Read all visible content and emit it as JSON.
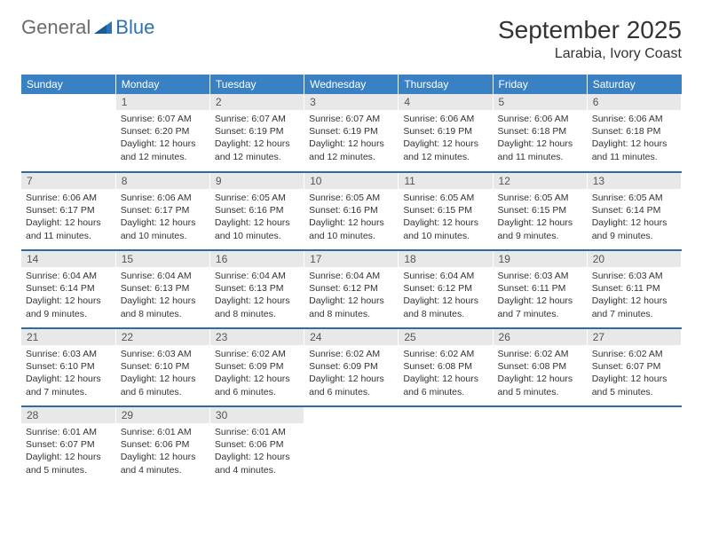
{
  "logo": {
    "general": "General",
    "blue": "Blue"
  },
  "title": "September 2025",
  "location": "Larabia, Ivory Coast",
  "header_color": "#3a81c4",
  "rule_color": "#2e6da4",
  "daynum_bg": "#e8e8e8",
  "fontsize_title": 28,
  "fontsize_location": 16,
  "fontsize_dayhead": 12,
  "fontsize_body": 10.5,
  "weekdays": [
    "Sunday",
    "Monday",
    "Tuesday",
    "Wednesday",
    "Thursday",
    "Friday",
    "Saturday"
  ],
  "weeks": [
    [
      null,
      {
        "n": "1",
        "sr": "6:07 AM",
        "ss": "6:20 PM",
        "dl": "12 hours and 12 minutes."
      },
      {
        "n": "2",
        "sr": "6:07 AM",
        "ss": "6:19 PM",
        "dl": "12 hours and 12 minutes."
      },
      {
        "n": "3",
        "sr": "6:07 AM",
        "ss": "6:19 PM",
        "dl": "12 hours and 12 minutes."
      },
      {
        "n": "4",
        "sr": "6:06 AM",
        "ss": "6:19 PM",
        "dl": "12 hours and 12 minutes."
      },
      {
        "n": "5",
        "sr": "6:06 AM",
        "ss": "6:18 PM",
        "dl": "12 hours and 11 minutes."
      },
      {
        "n": "6",
        "sr": "6:06 AM",
        "ss": "6:18 PM",
        "dl": "12 hours and 11 minutes."
      }
    ],
    [
      {
        "n": "7",
        "sr": "6:06 AM",
        "ss": "6:17 PM",
        "dl": "12 hours and 11 minutes."
      },
      {
        "n": "8",
        "sr": "6:06 AM",
        "ss": "6:17 PM",
        "dl": "12 hours and 10 minutes."
      },
      {
        "n": "9",
        "sr": "6:05 AM",
        "ss": "6:16 PM",
        "dl": "12 hours and 10 minutes."
      },
      {
        "n": "10",
        "sr": "6:05 AM",
        "ss": "6:16 PM",
        "dl": "12 hours and 10 minutes."
      },
      {
        "n": "11",
        "sr": "6:05 AM",
        "ss": "6:15 PM",
        "dl": "12 hours and 10 minutes."
      },
      {
        "n": "12",
        "sr": "6:05 AM",
        "ss": "6:15 PM",
        "dl": "12 hours and 9 minutes."
      },
      {
        "n": "13",
        "sr": "6:05 AM",
        "ss": "6:14 PM",
        "dl": "12 hours and 9 minutes."
      }
    ],
    [
      {
        "n": "14",
        "sr": "6:04 AM",
        "ss": "6:14 PM",
        "dl": "12 hours and 9 minutes."
      },
      {
        "n": "15",
        "sr": "6:04 AM",
        "ss": "6:13 PM",
        "dl": "12 hours and 8 minutes."
      },
      {
        "n": "16",
        "sr": "6:04 AM",
        "ss": "6:13 PM",
        "dl": "12 hours and 8 minutes."
      },
      {
        "n": "17",
        "sr": "6:04 AM",
        "ss": "6:12 PM",
        "dl": "12 hours and 8 minutes."
      },
      {
        "n": "18",
        "sr": "6:04 AM",
        "ss": "6:12 PM",
        "dl": "12 hours and 8 minutes."
      },
      {
        "n": "19",
        "sr": "6:03 AM",
        "ss": "6:11 PM",
        "dl": "12 hours and 7 minutes."
      },
      {
        "n": "20",
        "sr": "6:03 AM",
        "ss": "6:11 PM",
        "dl": "12 hours and 7 minutes."
      }
    ],
    [
      {
        "n": "21",
        "sr": "6:03 AM",
        "ss": "6:10 PM",
        "dl": "12 hours and 7 minutes."
      },
      {
        "n": "22",
        "sr": "6:03 AM",
        "ss": "6:10 PM",
        "dl": "12 hours and 6 minutes."
      },
      {
        "n": "23",
        "sr": "6:02 AM",
        "ss": "6:09 PM",
        "dl": "12 hours and 6 minutes."
      },
      {
        "n": "24",
        "sr": "6:02 AM",
        "ss": "6:09 PM",
        "dl": "12 hours and 6 minutes."
      },
      {
        "n": "25",
        "sr": "6:02 AM",
        "ss": "6:08 PM",
        "dl": "12 hours and 6 minutes."
      },
      {
        "n": "26",
        "sr": "6:02 AM",
        "ss": "6:08 PM",
        "dl": "12 hours and 5 minutes."
      },
      {
        "n": "27",
        "sr": "6:02 AM",
        "ss": "6:07 PM",
        "dl": "12 hours and 5 minutes."
      }
    ],
    [
      {
        "n": "28",
        "sr": "6:01 AM",
        "ss": "6:07 PM",
        "dl": "12 hours and 5 minutes."
      },
      {
        "n": "29",
        "sr": "6:01 AM",
        "ss": "6:06 PM",
        "dl": "12 hours and 4 minutes."
      },
      {
        "n": "30",
        "sr": "6:01 AM",
        "ss": "6:06 PM",
        "dl": "12 hours and 4 minutes."
      },
      null,
      null,
      null,
      null
    ]
  ],
  "labels": {
    "sunrise": "Sunrise:",
    "sunset": "Sunset:",
    "daylight": "Daylight:"
  }
}
